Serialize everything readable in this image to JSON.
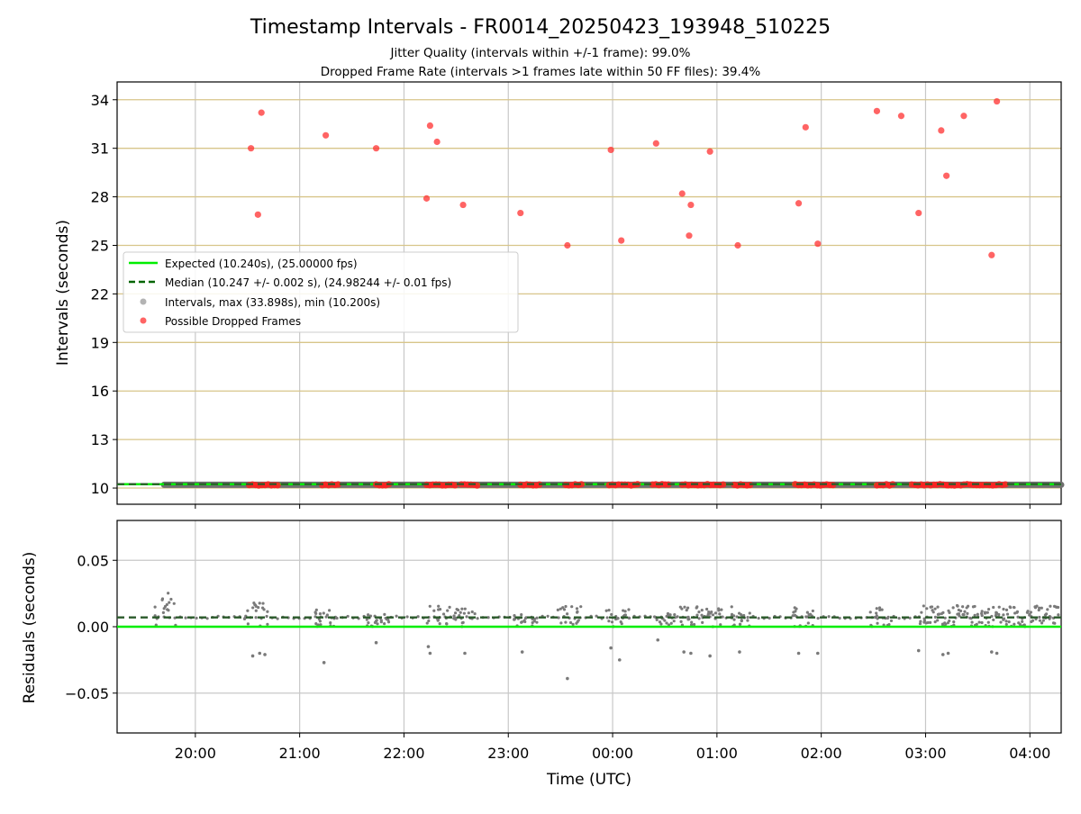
{
  "chart_data": [
    {
      "type": "scatter",
      "title": "Timestamp Intervals - FR0014_20250423_193948_510225",
      "subtitle_lines": [
        "Jitter Quality (intervals within +/-1 frame): 99.0%",
        "Dropped Frame Rate (intervals >1 frames late within 50 FF files): 39.4%"
      ],
      "ylabel": "Intervals (seconds)",
      "xlabel": "",
      "xlim": [
        "19:15",
        "04:18"
      ],
      "ylim": [
        9.0,
        35.1
      ],
      "yticks": [
        10,
        13,
        16,
        19,
        22,
        25,
        28,
        31,
        34
      ],
      "ytick_labels": [
        "10",
        "13",
        "16",
        "19",
        "22",
        "25",
        "28",
        "31",
        "34"
      ],
      "grid": true,
      "legend_position": "center-left",
      "legend": [
        "Expected (10.240s), (25.00000 fps)",
        "Median (10.247 +/- 0.002 s), (24.98244 +/- 0.01 fps)",
        "Intervals, max (33.898s), min (10.200s)",
        "Possible Dropped Frames"
      ],
      "expected_interval": 10.24,
      "median_interval": 10.247,
      "interval_band": {
        "x_start": "19:42",
        "x_end": "04:18",
        "value": 10.2
      },
      "dropped_low_clusters": [
        [
          "20:31",
          "20:48"
        ],
        [
          "21:13",
          "21:23"
        ],
        [
          "21:44",
          "21:53"
        ],
        [
          "22:13",
          "22:30"
        ],
        [
          "22:33",
          "22:43"
        ],
        [
          "23:07",
          "23:18"
        ],
        [
          "23:33",
          "23:43"
        ],
        [
          "23:58",
          "00:15"
        ],
        [
          "00:23",
          "00:33"
        ],
        [
          "00:40",
          "01:05"
        ],
        [
          "01:10",
          "01:20"
        ],
        [
          "01:45",
          "02:07"
        ],
        [
          "02:32",
          "02:42"
        ],
        [
          "02:52",
          "03:12"
        ],
        [
          "03:13",
          "03:33"
        ],
        [
          "03:35",
          "03:47"
        ]
      ],
      "series": [
        {
          "name": "Possible Dropped Frames",
          "points": [
            {
              "x": "20:32",
              "y": 31.0
            },
            {
              "x": "20:36",
              "y": 26.9
            },
            {
              "x": "20:38",
              "y": 33.2
            },
            {
              "x": "21:15",
              "y": 31.8
            },
            {
              "x": "21:44",
              "y": 31.0
            },
            {
              "x": "22:13",
              "y": 27.9
            },
            {
              "x": "22:15",
              "y": 32.4
            },
            {
              "x": "22:19",
              "y": 31.4
            },
            {
              "x": "22:34",
              "y": 27.5
            },
            {
              "x": "23:07",
              "y": 27.0
            },
            {
              "x": "23:34",
              "y": 25.0
            },
            {
              "x": "23:59",
              "y": 30.9
            },
            {
              "x": "00:05",
              "y": 25.3
            },
            {
              "x": "00:25",
              "y": 31.3
            },
            {
              "x": "00:40",
              "y": 28.2
            },
            {
              "x": "00:44",
              "y": 25.6
            },
            {
              "x": "00:45",
              "y": 27.5
            },
            {
              "x": "00:56",
              "y": 30.8
            },
            {
              "x": "01:12",
              "y": 25.0
            },
            {
              "x": "01:47",
              "y": 27.6
            },
            {
              "x": "01:51",
              "y": 32.3
            },
            {
              "x": "01:58",
              "y": 25.1
            },
            {
              "x": "02:32",
              "y": 33.3
            },
            {
              "x": "02:46",
              "y": 33.0
            },
            {
              "x": "02:56",
              "y": 27.0
            },
            {
              "x": "03:09",
              "y": 32.1
            },
            {
              "x": "03:12",
              "y": 29.3
            },
            {
              "x": "03:22",
              "y": 33.0
            },
            {
              "x": "03:38",
              "y": 24.4
            },
            {
              "x": "03:41",
              "y": 33.9
            }
          ]
        }
      ]
    },
    {
      "type": "scatter",
      "ylabel": "Residuals (seconds)",
      "xlabel": "Time (UTC)",
      "xlim": [
        "19:15",
        "04:18"
      ],
      "ylim": [
        -0.08,
        0.08
      ],
      "yticks": [
        -0.05,
        0.0,
        0.05
      ],
      "ytick_labels": [
        "−0.05",
        "0.00",
        "0.05"
      ],
      "xtick_labels": [
        "20:00",
        "21:00",
        "22:00",
        "23:00",
        "00:00",
        "01:00",
        "02:00",
        "03:00",
        "04:00"
      ],
      "grid": true,
      "expected_residual": 0.0,
      "median_residual": 0.007,
      "dense_region": {
        "x_start": "02:57",
        "x_end": "04:18",
        "y_min": 0.0,
        "y_max": 0.016
      },
      "clusters": [
        {
          "x": "19:42",
          "min": 0.0,
          "max": 0.026
        },
        {
          "x": "20:35",
          "min": 0.0,
          "max": 0.018
        },
        {
          "x": "21:15",
          "min": 0.0,
          "max": 0.015
        },
        {
          "x": "21:45",
          "min": 0.0,
          "max": 0.01
        },
        {
          "x": "22:20",
          "min": 0.0,
          "max": 0.016
        },
        {
          "x": "22:35",
          "min": 0.0,
          "max": 0.014
        },
        {
          "x": "23:10",
          "min": 0.0,
          "max": 0.01
        },
        {
          "x": "23:35",
          "min": 0.0,
          "max": 0.017
        },
        {
          "x": "00:03",
          "min": 0.0,
          "max": 0.013
        },
        {
          "x": "00:30",
          "min": 0.0,
          "max": 0.01
        },
        {
          "x": "00:45",
          "min": 0.0,
          "max": 0.016
        },
        {
          "x": "00:58",
          "min": 0.0,
          "max": 0.014
        },
        {
          "x": "01:13",
          "min": 0.0,
          "max": 0.017
        },
        {
          "x": "01:50",
          "min": 0.0,
          "max": 0.016
        },
        {
          "x": "02:35",
          "min": 0.0,
          "max": 0.015
        }
      ],
      "outliers": [
        {
          "x": "20:33",
          "y": -0.022
        },
        {
          "x": "20:37",
          "y": -0.02
        },
        {
          "x": "20:40",
          "y": -0.021
        },
        {
          "x": "21:14",
          "y": -0.027
        },
        {
          "x": "21:44",
          "y": -0.012
        },
        {
          "x": "22:14",
          "y": -0.015
        },
        {
          "x": "22:15",
          "y": -0.02
        },
        {
          "x": "22:35",
          "y": -0.02
        },
        {
          "x": "23:08",
          "y": -0.019
        },
        {
          "x": "23:34",
          "y": -0.039
        },
        {
          "x": "23:59",
          "y": -0.016
        },
        {
          "x": "00:04",
          "y": -0.025
        },
        {
          "x": "00:26",
          "y": -0.01
        },
        {
          "x": "00:41",
          "y": -0.019
        },
        {
          "x": "00:45",
          "y": -0.02
        },
        {
          "x": "00:56",
          "y": -0.022
        },
        {
          "x": "01:13",
          "y": -0.019
        },
        {
          "x": "01:47",
          "y": -0.02
        },
        {
          "x": "01:58",
          "y": -0.02
        },
        {
          "x": "02:56",
          "y": -0.018
        },
        {
          "x": "03:10",
          "y": -0.021
        },
        {
          "x": "03:13",
          "y": -0.02
        },
        {
          "x": "03:38",
          "y": -0.019
        },
        {
          "x": "03:41",
          "y": -0.02
        }
      ]
    }
  ]
}
